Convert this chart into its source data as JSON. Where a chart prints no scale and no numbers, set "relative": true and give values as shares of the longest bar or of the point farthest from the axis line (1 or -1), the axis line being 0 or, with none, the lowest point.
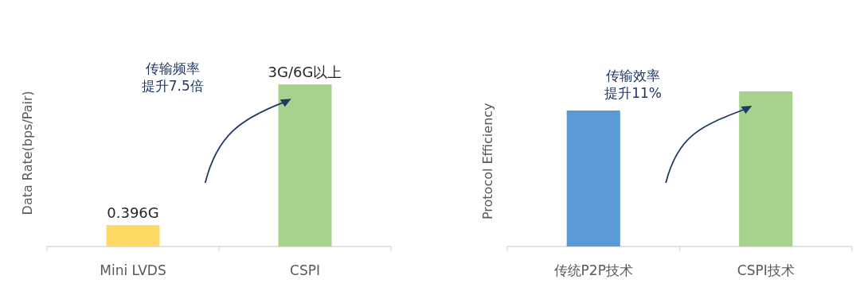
{
  "chart_data": [
    {
      "type": "bar",
      "ylabel": "Data Rate(bps/Pair)",
      "categories": [
        "Mini LVDS",
        "CSPI"
      ],
      "values": [
        0.396,
        3
      ],
      "colors": [
        "#ffd966",
        "#a9d18e"
      ],
      "value_labels": [
        "0.396G",
        "3G/6G以上"
      ],
      "annotations": [
        "传输频率提升7.5倍"
      ]
    },
    {
      "type": "bar",
      "relative": true,
      "ylabel": "Protocol Efficiency",
      "categories": [
        "传统P2P技术",
        "CSPI技术"
      ],
      "values": [
        0.877,
        1
      ],
      "colors": [
        "#5b9bd5",
        "#a9d18e"
      ],
      "annotations": [
        "传输效率提升11%"
      ]
    }
  ]
}
